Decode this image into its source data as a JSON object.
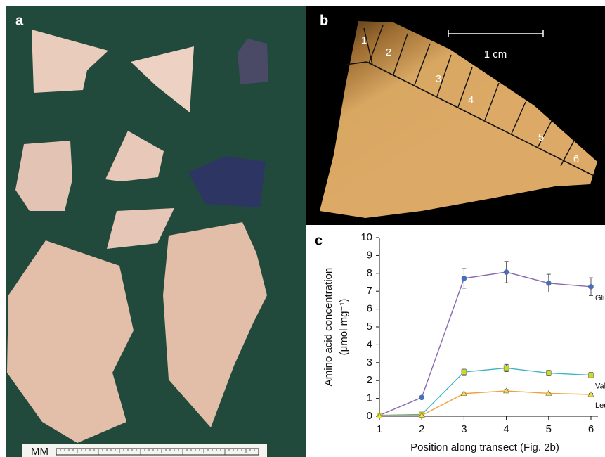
{
  "panels": {
    "a": {
      "label": "a",
      "scale_label": "MM"
    },
    "b": {
      "label": "b",
      "scale_label": "1 cm",
      "segments": [
        "1",
        "2",
        "3",
        "4",
        "5",
        "6"
      ]
    },
    "c": {
      "label": "c"
    }
  },
  "chart_data": {
    "type": "line",
    "ylabel": [
      "Amino acid concentration",
      "(μmol mg⁻¹)"
    ],
    "xlabel": "Position along transect (Fig. 2b)",
    "x": [
      1,
      2,
      3,
      4,
      5,
      6
    ],
    "xlim": [
      1,
      6
    ],
    "xticks": [
      1,
      2,
      3,
      4,
      5,
      6
    ],
    "ylim": [
      0,
      10
    ],
    "yticks": [
      0,
      1,
      2,
      3,
      4,
      5,
      6,
      7,
      8,
      9,
      10
    ],
    "series": [
      {
        "name": "Glu",
        "color": "#8a68ae",
        "marker_color": "#3f6fd0",
        "marker": "circle",
        "values": [
          0.05,
          1.05,
          7.72,
          8.07,
          7.45,
          7.25
        ],
        "errors": [
          0,
          0,
          0.55,
          0.6,
          0.5,
          0.5
        ]
      },
      {
        "name": "Val",
        "color": "#3fb3cb",
        "marker_color": "#c9dc1e",
        "marker": "square",
        "values": [
          0.05,
          0.1,
          2.48,
          2.7,
          2.42,
          2.3
        ],
        "errors": [
          0,
          0,
          0.2,
          0.2,
          0.15,
          0.15
        ]
      },
      {
        "name": "Leu",
        "color": "#f0a040",
        "marker_color": "#f2e23a",
        "marker": "triangle",
        "values": [
          0.03,
          0.05,
          1.27,
          1.42,
          1.28,
          1.22
        ],
        "errors": [
          0,
          0,
          0.08,
          0.08,
          0.06,
          0.06
        ]
      }
    ]
  }
}
